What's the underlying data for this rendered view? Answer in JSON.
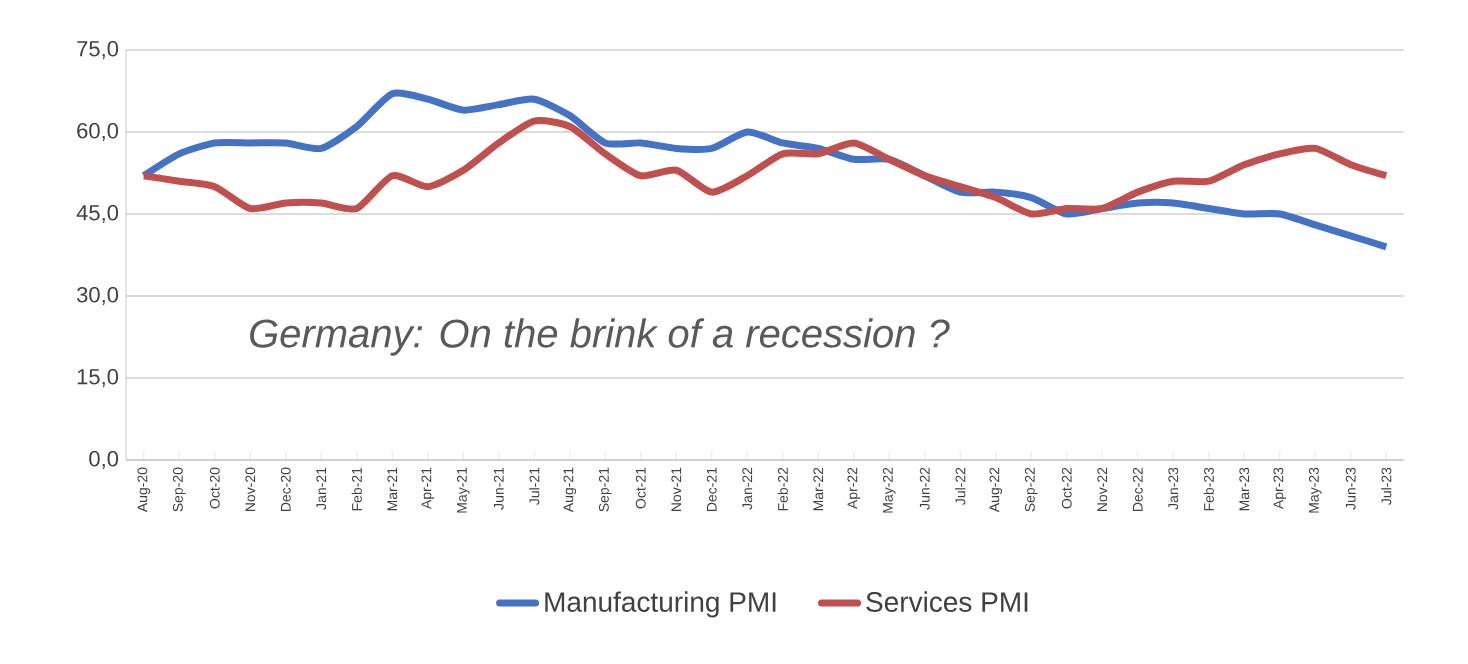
{
  "chart_data": {
    "type": "line",
    "categories": [
      "Aug-20",
      "Sep-20",
      "Oct-20",
      "Nov-20",
      "Dec-20",
      "Jan-21",
      "Feb-21",
      "Mar-21",
      "Apr-21",
      "May-21",
      "Jun-21",
      "Jul-21",
      "Aug-21",
      "Sep-21",
      "Oct-21",
      "Nov-21",
      "Dec-21",
      "Jan-22",
      "Feb-22",
      "Mar-22",
      "Apr-22",
      "May-22",
      "Jun-22",
      "Jul-22",
      "Aug-22",
      "Sep-22",
      "Oct-22",
      "Nov-22",
      "Dec-22",
      "Jan-23",
      "Feb-23",
      "Mar-23",
      "Apr-23",
      "May-23",
      "Jun-23",
      "Jul-23"
    ],
    "series": [
      {
        "name": "Manufacturing PMI",
        "color": "#4472c4",
        "values": [
          52,
          56,
          58,
          58,
          58,
          57,
          61,
          67,
          66,
          64,
          65,
          66,
          63,
          58,
          58,
          57,
          57,
          60,
          58,
          57,
          55,
          55,
          52,
          49,
          49,
          48,
          45,
          46,
          47,
          47,
          46,
          45,
          45,
          43,
          41,
          39
        ]
      },
      {
        "name": "Services PMI",
        "color": "#c0504d",
        "values": [
          52,
          51,
          50,
          46,
          47,
          47,
          46,
          52,
          50,
          53,
          58,
          62,
          61,
          56,
          52,
          53,
          49,
          52,
          56,
          56,
          58,
          55,
          52,
          50,
          48,
          45,
          46,
          46,
          49,
          51,
          51,
          54,
          56,
          57,
          54,
          52
        ]
      }
    ],
    "ylim": [
      0,
      75
    ],
    "yticks": [
      {
        "value": 0,
        "label": "0,0"
      },
      {
        "value": 15,
        "label": "15,0"
      },
      {
        "value": 30,
        "label": "30,0"
      },
      {
        "value": 45,
        "label": "45,0"
      },
      {
        "value": 60,
        "label": "60,0"
      },
      {
        "value": 75,
        "label": "75,0"
      }
    ],
    "grid": "y",
    "legend": "bottom",
    "marker": "none",
    "line_style": "solid",
    "annotations": [
      "Germany: On the brink of a recession ?"
    ]
  }
}
